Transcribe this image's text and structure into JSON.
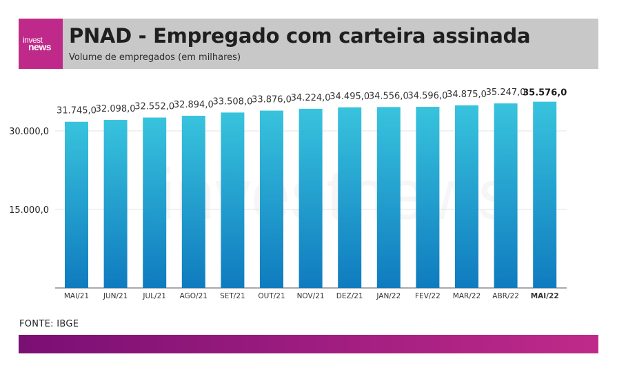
{
  "brand": {
    "logo_line1": "invest",
    "logo_line2": "news",
    "accent": "#bf2a8a"
  },
  "header": {
    "title": "PNAD - Empregado com carteira assinada",
    "subtitle": "Volume de empregados (em milhares)"
  },
  "chart_data": {
    "type": "bar",
    "categories": [
      "MAI/21",
      "JUN/21",
      "JUL/21",
      "AGO/21",
      "SET/21",
      "OUT/21",
      "NOV/21",
      "DEZ/21",
      "JAN/22",
      "FEV/22",
      "MAR/22",
      "ABR/22",
      "MAI/22"
    ],
    "values": [
      31745.0,
      32098.0,
      32552.0,
      32894.0,
      33508.0,
      33876.0,
      34224.0,
      34495.0,
      34556.0,
      34596.0,
      34875.0,
      35247.0,
      35576.0
    ],
    "value_labels": [
      "31.745,0",
      "32.098,0",
      "32.552,0",
      "32.894,0",
      "33.508,0",
      "33.876,0",
      "34.224,0",
      "34.495,0",
      "34.556,0",
      "34.596,0",
      "34.875,0",
      "35.247,0",
      "35.576,0"
    ],
    "highlight_index": 12,
    "yticks": [
      15000,
      30000
    ],
    "ytick_labels": [
      "15.000,0",
      "30.000,0"
    ],
    "ylim": [
      0,
      38000
    ],
    "grid": true,
    "bar_color_top": "#38c3dd",
    "bar_color_bottom": "#0f7bbf"
  },
  "watermark": "investnews",
  "source": "FONTE: IBGE"
}
